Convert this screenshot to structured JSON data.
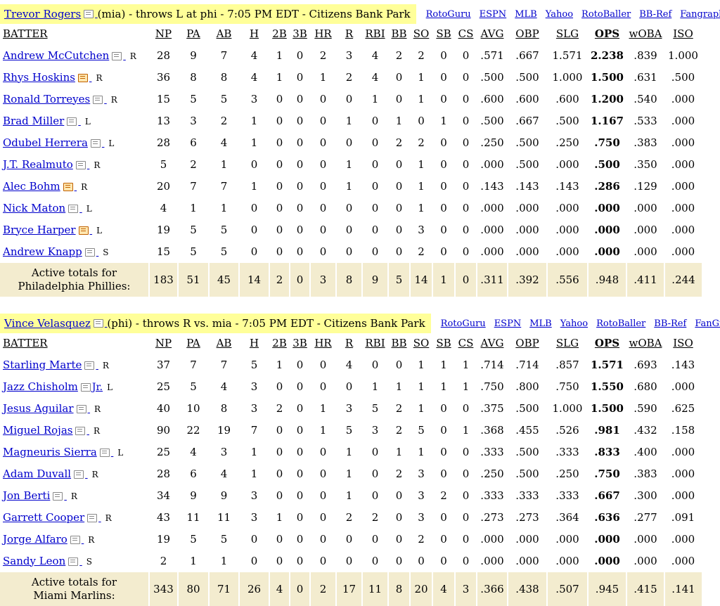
{
  "columns": [
    "BATTER",
    "NP",
    "PA",
    "AB",
    "H",
    "2B",
    "3B",
    "HR",
    "R",
    "RBI",
    "BB",
    "SO",
    "SB",
    "CS",
    "AVG",
    "OBP",
    "SLG",
    "OPS",
    "wOBA",
    "ISO"
  ],
  "games": [
    {
      "pitcher": "Trevor Rogers",
      "info": "(mia) - throws L at phi - 7:05 PM EDT - Citizens Bank Park",
      "links": [
        "RotoGuru",
        "ESPN",
        "MLB",
        "Yahoo",
        "RotoBaller",
        "BB-Ref",
        "Fangraphs"
      ],
      "batters": [
        {
          "name": "Andrew McCutchen",
          "hand": "R",
          "alert": false,
          "stats": [
            "28",
            "9",
            "7",
            "4",
            "1",
            "0",
            "2",
            "3",
            "4",
            "2",
            "2",
            "0",
            "0",
            ".571",
            ".667",
            "1.571",
            "2.238",
            ".839",
            "1.000"
          ]
        },
        {
          "name": "Rhys Hoskins",
          "hand": "R",
          "alert": true,
          "stats": [
            "36",
            "8",
            "8",
            "4",
            "1",
            "0",
            "1",
            "2",
            "4",
            "0",
            "1",
            "0",
            "0",
            ".500",
            ".500",
            "1.000",
            "1.500",
            ".631",
            ".500"
          ]
        },
        {
          "name": "Ronald Torreyes",
          "hand": "R",
          "alert": false,
          "stats": [
            "15",
            "5",
            "5",
            "3",
            "0",
            "0",
            "0",
            "0",
            "1",
            "0",
            "1",
            "0",
            "0",
            ".600",
            ".600",
            ".600",
            "1.200",
            ".540",
            ".000"
          ]
        },
        {
          "name": "Brad Miller",
          "hand": "L",
          "alert": false,
          "stats": [
            "13",
            "3",
            "2",
            "1",
            "0",
            "0",
            "0",
            "1",
            "0",
            "1",
            "0",
            "1",
            "0",
            ".500",
            ".667",
            ".500",
            "1.167",
            ".533",
            ".000"
          ]
        },
        {
          "name": "Odubel Herrera",
          "hand": "L",
          "alert": false,
          "stats": [
            "28",
            "6",
            "4",
            "1",
            "0",
            "0",
            "0",
            "0",
            "0",
            "2",
            "2",
            "0",
            "0",
            ".250",
            ".500",
            ".250",
            ".750",
            ".383",
            ".000"
          ]
        },
        {
          "name": "J.T. Realmuto",
          "hand": "R",
          "alert": false,
          "stats": [
            "5",
            "2",
            "1",
            "0",
            "0",
            "0",
            "0",
            "1",
            "0",
            "0",
            "1",
            "0",
            "0",
            ".000",
            ".500",
            ".000",
            ".500",
            ".350",
            ".000"
          ]
        },
        {
          "name": "Alec Bohm",
          "hand": "R",
          "alert": true,
          "stats": [
            "20",
            "7",
            "7",
            "1",
            "0",
            "0",
            "0",
            "1",
            "0",
            "0",
            "1",
            "0",
            "0",
            ".143",
            ".143",
            ".143",
            ".286",
            ".129",
            ".000"
          ]
        },
        {
          "name": "Nick Maton",
          "hand": "L",
          "alert": false,
          "stats": [
            "4",
            "1",
            "1",
            "0",
            "0",
            "0",
            "0",
            "0",
            "0",
            "0",
            "1",
            "0",
            "0",
            ".000",
            ".000",
            ".000",
            ".000",
            ".000",
            ".000"
          ]
        },
        {
          "name": "Bryce Harper",
          "hand": "L",
          "alert": true,
          "stats": [
            "19",
            "5",
            "5",
            "0",
            "0",
            "0",
            "0",
            "0",
            "0",
            "0",
            "3",
            "0",
            "0",
            ".000",
            ".000",
            ".000",
            ".000",
            ".000",
            ".000"
          ]
        },
        {
          "name": "Andrew Knapp",
          "hand": "S",
          "alert": false,
          "stats": [
            "15",
            "5",
            "5",
            "0",
            "0",
            "0",
            "0",
            "0",
            "0",
            "0",
            "2",
            "0",
            "0",
            ".000",
            ".000",
            ".000",
            ".000",
            ".000",
            ".000"
          ]
        }
      ],
      "totals_label_1": "Active totals for",
      "totals_label_2": "Philadelphia Phillies:",
      "totals": [
        "183",
        "51",
        "45",
        "14",
        "2",
        "0",
        "3",
        "8",
        "9",
        "5",
        "14",
        "1",
        "0",
        ".311",
        ".392",
        ".556",
        ".948",
        ".411",
        ".244"
      ]
    },
    {
      "pitcher": "Vince Velasquez",
      "info": "(phi) - throws R vs. mia - 7:05 PM EDT - Citizens Bank Park",
      "links": [
        "RotoGuru",
        "ESPN",
        "MLB",
        "Yahoo",
        "RotoBaller",
        "BB-Ref",
        "FanGraphs"
      ],
      "batters": [
        {
          "name": "Starling Marte",
          "hand": "R",
          "alert": false,
          "stats": [
            "37",
            "7",
            "7",
            "5",
            "1",
            "0",
            "0",
            "4",
            "0",
            "0",
            "1",
            "1",
            "1",
            ".714",
            ".714",
            ".857",
            "1.571",
            ".693",
            ".143"
          ]
        },
        {
          "name": "Jazz Chisholm",
          "suffix": "Jr.",
          "hand": "L",
          "alert": false,
          "stats": [
            "25",
            "5",
            "4",
            "3",
            "0",
            "0",
            "0",
            "0",
            "1",
            "1",
            "1",
            "1",
            "1",
            ".750",
            ".800",
            ".750",
            "1.550",
            ".680",
            ".000"
          ]
        },
        {
          "name": "Jesus Aguilar",
          "hand": "R",
          "alert": false,
          "stats": [
            "40",
            "10",
            "8",
            "3",
            "2",
            "0",
            "1",
            "3",
            "5",
            "2",
            "1",
            "0",
            "0",
            ".375",
            ".500",
            "1.000",
            "1.500",
            ".590",
            ".625"
          ]
        },
        {
          "name": "Miguel Rojas",
          "hand": "R",
          "alert": false,
          "stats": [
            "90",
            "22",
            "19",
            "7",
            "0",
            "0",
            "1",
            "5",
            "3",
            "2",
            "5",
            "0",
            "1",
            ".368",
            ".455",
            ".526",
            ".981",
            ".432",
            ".158"
          ]
        },
        {
          "name": "Magneuris Sierra",
          "hand": "L",
          "alert": false,
          "stats": [
            "25",
            "4",
            "3",
            "1",
            "0",
            "0",
            "0",
            "1",
            "0",
            "1",
            "1",
            "0",
            "0",
            ".333",
            ".500",
            ".333",
            ".833",
            ".400",
            ".000"
          ]
        },
        {
          "name": "Adam Duvall",
          "hand": "R",
          "alert": false,
          "stats": [
            "28",
            "6",
            "4",
            "1",
            "0",
            "0",
            "0",
            "1",
            "0",
            "2",
            "3",
            "0",
            "0",
            ".250",
            ".500",
            ".250",
            ".750",
            ".383",
            ".000"
          ]
        },
        {
          "name": "Jon Berti",
          "hand": "R",
          "alert": false,
          "stats": [
            "34",
            "9",
            "9",
            "3",
            "0",
            "0",
            "0",
            "1",
            "0",
            "0",
            "3",
            "2",
            "0",
            ".333",
            ".333",
            ".333",
            ".667",
            ".300",
            ".000"
          ]
        },
        {
          "name": "Garrett Cooper",
          "hand": "R",
          "alert": false,
          "stats": [
            "43",
            "11",
            "11",
            "3",
            "1",
            "0",
            "0",
            "2",
            "2",
            "0",
            "3",
            "0",
            "0",
            ".273",
            ".273",
            ".364",
            ".636",
            ".277",
            ".091"
          ]
        },
        {
          "name": "Jorge Alfaro",
          "hand": "R",
          "alert": false,
          "stats": [
            "19",
            "5",
            "5",
            "0",
            "0",
            "0",
            "0",
            "0",
            "0",
            "0",
            "2",
            "0",
            "0",
            ".000",
            ".000",
            ".000",
            ".000",
            ".000",
            ".000"
          ]
        },
        {
          "name": "Sandy Leon",
          "hand": "S",
          "alert": false,
          "stats": [
            "2",
            "1",
            "1",
            "0",
            "0",
            "0",
            "0",
            "0",
            "0",
            "0",
            "0",
            "0",
            "0",
            ".000",
            ".000",
            ".000",
            ".000",
            ".000",
            ".000"
          ]
        }
      ],
      "totals_label_1": "Active totals for",
      "totals_label_2": "Miami Marlins:",
      "totals": [
        "343",
        "80",
        "71",
        "26",
        "4",
        "0",
        "2",
        "17",
        "11",
        "8",
        "20",
        "4",
        "3",
        ".366",
        ".438",
        ".507",
        ".945",
        ".415",
        ".141"
      ]
    }
  ]
}
